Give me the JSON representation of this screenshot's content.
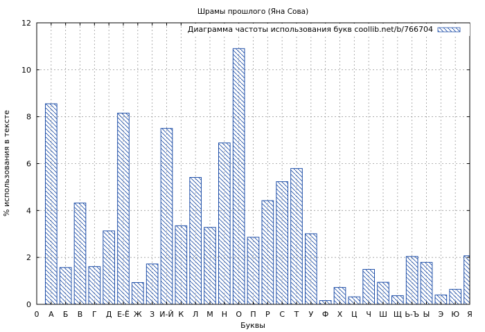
{
  "chart_data": {
    "type": "bar",
    "title": "Шрамы прошлого (Яна Сова)",
    "xlabel": "Буквы",
    "ylabel": "% использования в тексте",
    "ylim": [
      0,
      12
    ],
    "yticks": [
      "0",
      "2",
      "4",
      "6",
      "8",
      "10",
      "12"
    ],
    "grid": true,
    "legend_position": "top-right",
    "series": [
      {
        "name": "Диаграмма частоты использования букв coollib.net/b/766704",
        "color": "#1f4fa8",
        "pattern": "diagonal-hatch"
      }
    ],
    "categories": [
      "0",
      "А",
      "Б",
      "В",
      "Г",
      "Д",
      "Е-Ё",
      "Ж",
      "З",
      "И-Й",
      "К",
      "Л",
      "М",
      "Н",
      "О",
      "П",
      "Р",
      "С",
      "Т",
      "У",
      "Ф",
      "Х",
      "Ц",
      "Ч",
      "Ш",
      "Щ",
      "Ь-Ъ",
      "Ы",
      "Э",
      "Ю",
      "Я"
    ],
    "values": [
      0,
      8.55,
      1.57,
      4.32,
      1.61,
      3.13,
      8.15,
      0.93,
      1.72,
      7.5,
      3.35,
      5.41,
      3.28,
      6.88,
      10.9,
      2.86,
      4.42,
      5.23,
      5.79,
      3.01,
      0.16,
      0.72,
      0.32,
      1.49,
      0.94,
      0.37,
      2.04,
      1.79,
      0.4,
      0.64,
      2.07
    ]
  }
}
